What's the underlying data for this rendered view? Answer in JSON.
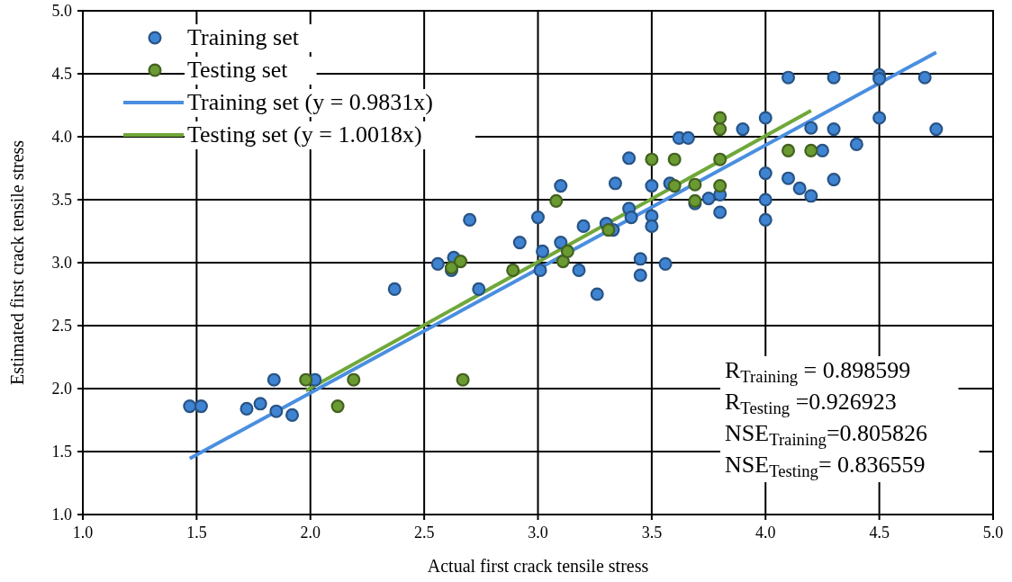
{
  "chart_data": {
    "type": "scatter",
    "xlabel": "Actual first crack tensile stress",
    "ylabel": "Estimated first crack tensile stress",
    "xlim": [
      1,
      5
    ],
    "ylim": [
      1,
      5
    ],
    "xticks": [
      {
        "value": 1,
        "label": "1.0"
      },
      {
        "value": 1.5,
        "label": "1.5"
      },
      {
        "value": 2,
        "label": "2.0"
      },
      {
        "value": 2.5,
        "label": "2.5"
      },
      {
        "value": 3,
        "label": "3.0"
      },
      {
        "value": 3.5,
        "label": "3.5"
      },
      {
        "value": 4,
        "label": "4.0"
      },
      {
        "value": 4.5,
        "label": "4.5"
      },
      {
        "value": 5,
        "label": "5.0"
      }
    ],
    "yticks": [
      {
        "value": 1,
        "label": "1.0"
      },
      {
        "value": 1.5,
        "label": "1.5"
      },
      {
        "value": 2,
        "label": "2.0"
      },
      {
        "value": 2.5,
        "label": "2.5"
      },
      {
        "value": 3,
        "label": "3.0"
      },
      {
        "value": 3.5,
        "label": "3.5"
      },
      {
        "value": 4,
        "label": "4.0"
      },
      {
        "value": 4.5,
        "label": "4.5"
      },
      {
        "value": 5,
        "label": "5.0"
      }
    ],
    "grid": true,
    "legend": "top left",
    "marker": "circle",
    "series": [
      {
        "name": "Training set",
        "color": "#3f84d2",
        "x": [
          1.47,
          1.52,
          1.72,
          1.78,
          1.84,
          1.85,
          1.92,
          2.02,
          2.37,
          2.56,
          2.63,
          2.62,
          2.7,
          2.74,
          2.92,
          3.0,
          3.01,
          3.02,
          3.1,
          3.1,
          3.18,
          3.2,
          3.26,
          3.3,
          3.33,
          3.34,
          3.4,
          3.4,
          3.41,
          3.45,
          3.45,
          3.5,
          3.5,
          3.5,
          3.56,
          3.58,
          3.62,
          3.66,
          3.69,
          3.75,
          3.8,
          3.8,
          3.9,
          4.0,
          4.0,
          4.0,
          4.0,
          4.1,
          4.1,
          4.15,
          4.2,
          4.2,
          4.25,
          4.3,
          4.3,
          4.3,
          4.4,
          4.5,
          4.5,
          4.5,
          4.7,
          4.75
        ],
        "values": [
          1.86,
          1.86,
          1.84,
          1.88,
          2.07,
          1.82,
          1.79,
          2.07,
          2.79,
          2.99,
          3.04,
          2.94,
          3.34,
          2.79,
          3.16,
          3.36,
          2.94,
          3.09,
          3.16,
          3.61,
          2.94,
          3.29,
          2.75,
          3.31,
          3.26,
          3.63,
          3.83,
          3.43,
          3.36,
          3.03,
          2.9,
          3.61,
          3.37,
          3.29,
          2.99,
          3.63,
          3.99,
          3.99,
          3.47,
          3.51,
          3.4,
          3.54,
          4.06,
          4.15,
          3.71,
          3.5,
          3.34,
          4.47,
          3.67,
          3.59,
          3.53,
          4.07,
          3.89,
          4.47,
          4.06,
          3.66,
          3.94,
          4.49,
          4.46,
          4.15,
          4.47,
          4.06
        ]
      },
      {
        "name": "Testing set",
        "color": "#6a9a32",
        "x": [
          1.98,
          2.12,
          2.19,
          2.62,
          2.66,
          2.67,
          2.89,
          3.08,
          3.11,
          3.13,
          3.31,
          3.5,
          3.6,
          3.6,
          3.69,
          3.69,
          3.8,
          3.8,
          3.8,
          3.8,
          4.1,
          4.2
        ],
        "values": [
          2.07,
          1.86,
          2.07,
          2.96,
          3.01,
          2.07,
          2.94,
          3.49,
          3.01,
          3.09,
          3.26,
          3.82,
          3.82,
          3.61,
          3.49,
          3.62,
          4.15,
          4.06,
          3.82,
          3.61,
          3.89,
          3.89
        ]
      },
      {
        "name": "Training set (y = 0.9831x)",
        "type": "line",
        "marker": "none",
        "color": "#4a8ee0",
        "x": [
          1.47,
          4.75
        ],
        "values": [
          1.445,
          4.67
        ]
      },
      {
        "name": "Testing set (y = 1.0018x)",
        "type": "line",
        "marker": "none",
        "color": "#70a83a",
        "x": [
          1.98,
          4.2
        ],
        "values": [
          1.984,
          4.208
        ]
      }
    ],
    "annotations": [
      "R$_{Training}$ = 0.898599",
      "R$_{Testing}$ =0.926923",
      "NSE$_{Training}$=0.805826",
      "NSE$_{Testing}$= 0.836559"
    ]
  }
}
